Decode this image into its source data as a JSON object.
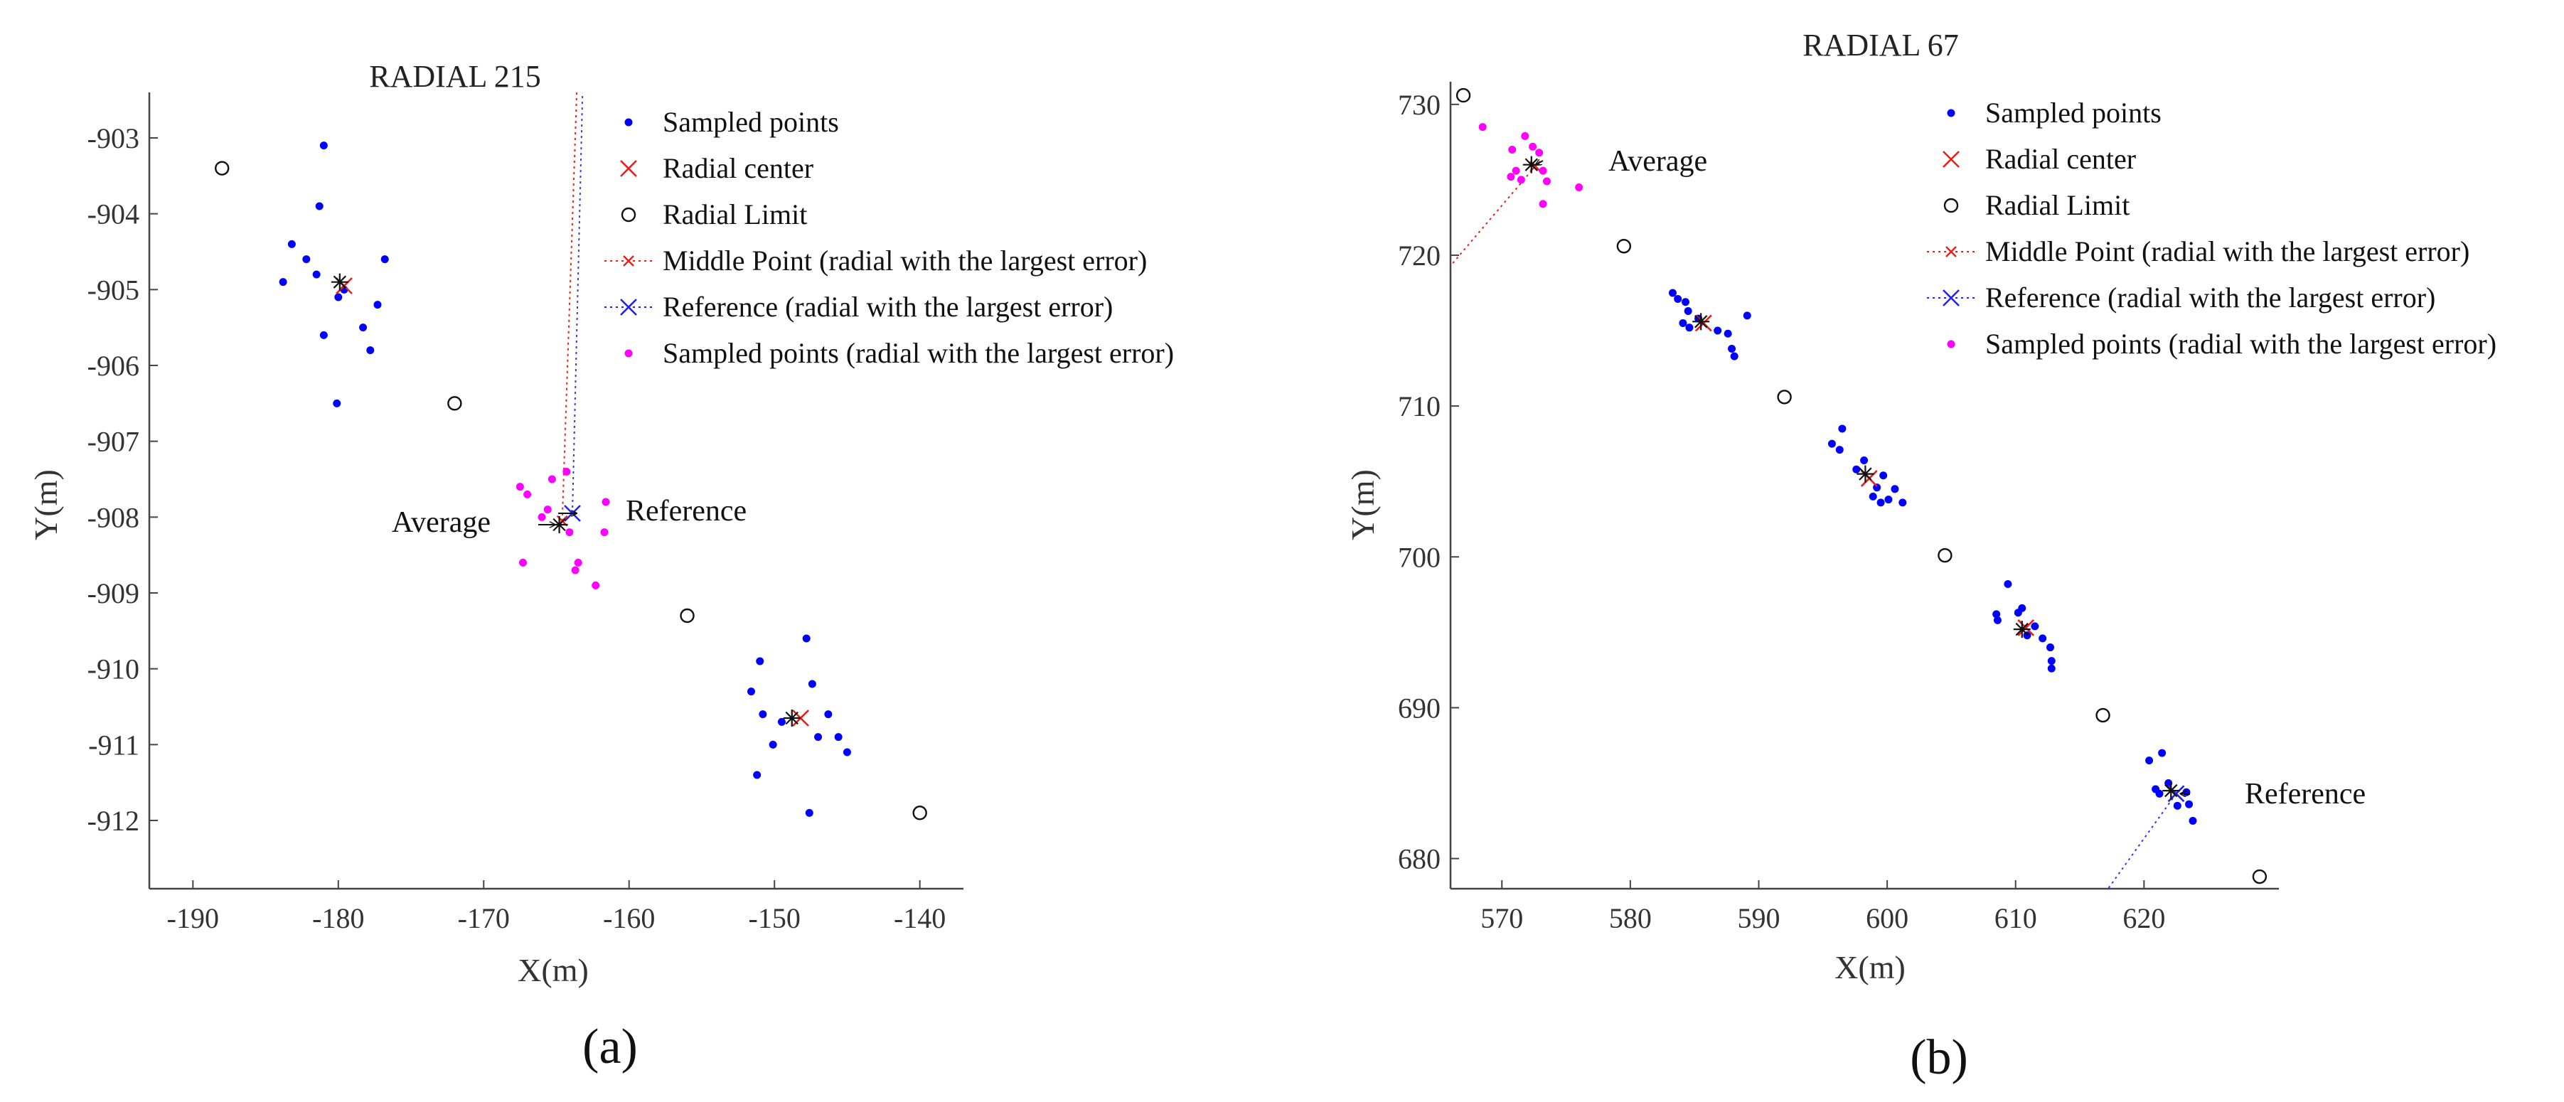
{
  "chart_data": [
    {
      "type": "scatter",
      "panel_label": "(a)",
      "title": "RADIAL 215",
      "xlabel": "X(m)",
      "ylabel": "Y(m)",
      "xlim": [
        -193,
        -137
      ],
      "ylim": [
        -912.9,
        -902.4
      ],
      "xticks": [
        -190,
        -180,
        -170,
        -160,
        -150,
        -140
      ],
      "yticks": [
        -903,
        -904,
        -905,
        -906,
        -907,
        -908,
        -909,
        -910,
        -911,
        -912
      ],
      "xtick_labels": [
        "-190",
        "-180",
        "-170",
        "-160",
        "-150",
        "-140"
      ],
      "ytick_labels": [
        "-903",
        "-904",
        "-905",
        "-906",
        "-907",
        "-908",
        "-909",
        "-910",
        "-911",
        "-912"
      ],
      "legend": {
        "position": "top-right",
        "entries": [
          {
            "key": "sampled",
            "label": "Sampled points"
          },
          {
            "key": "center",
            "label": "Radial center"
          },
          {
            "key": "limit",
            "label": "Radial Limit"
          },
          {
            "key": "middle",
            "label": "Middle Point (radial with the largest error)"
          },
          {
            "key": "reference",
            "label": "Reference (radial with the largest error)"
          },
          {
            "key": "sampled_err",
            "label": "Sampled points (radial with the largest error)"
          }
        ]
      },
      "annotations": [
        {
          "label": "Average",
          "text": "Average",
          "point": [
            -164.8,
            -908.1
          ],
          "side": "left"
        },
        {
          "label": "Reference",
          "text": "Reference",
          "point": [
            -163.9,
            -907.95
          ],
          "side": "right"
        }
      ],
      "series": [
        {
          "key": "sampled",
          "name": "Sampled points",
          "color": "#0000ff",
          "points": [
            [
              -181.0,
              -903.1
            ],
            [
              -181.3,
              -903.9
            ],
            [
              -183.2,
              -904.4
            ],
            [
              -182.2,
              -904.6
            ],
            [
              -181.5,
              -904.8
            ],
            [
              -183.8,
              -904.9
            ],
            [
              -176.8,
              -904.6
            ],
            [
              -177.3,
              -905.2
            ],
            [
              -178.3,
              -905.5
            ],
            [
              -177.8,
              -905.8
            ],
            [
              -181.0,
              -905.6
            ],
            [
              -180.0,
              -905.1
            ],
            [
              -179.6,
              -905.0
            ],
            [
              -180.1,
              -906.5
            ],
            [
              -147.8,
              -909.6
            ],
            [
              -151.0,
              -909.9
            ],
            [
              -151.6,
              -910.3
            ],
            [
              -147.4,
              -910.2
            ],
            [
              -150.8,
              -910.6
            ],
            [
              -146.3,
              -910.6
            ],
            [
              -145.6,
              -910.9
            ],
            [
              -147.0,
              -910.9
            ],
            [
              -150.1,
              -911.0
            ],
            [
              -145.0,
              -911.1
            ],
            [
              -149.5,
              -910.7
            ],
            [
              -151.2,
              -911.4
            ],
            [
              -147.6,
              -911.9
            ]
          ]
        },
        {
          "key": "center",
          "name": "Radial center",
          "color": "#e8201a",
          "points": [
            [
              -179.6,
              -904.95
            ],
            [
              -148.2,
              -910.65
            ]
          ]
        },
        {
          "key": "limit",
          "name": "Radial Limit",
          "color": "#111111",
          "points": [
            [
              -188.0,
              -903.4
            ],
            [
              -172.0,
              -906.5
            ],
            [
              -156.0,
              -909.3
            ],
            [
              -140.0,
              -911.9
            ]
          ]
        },
        {
          "key": "middle",
          "name": "Middle Point (radial with the largest error)",
          "color": "#e8201a",
          "points": [
            [
              -164.6,
              -908.05
            ]
          ]
        },
        {
          "key": "reference",
          "name": "Reference (radial with the largest error)",
          "color": "#2222ee",
          "points": [
            [
              -163.9,
              -907.95
            ]
          ]
        },
        {
          "key": "average",
          "name": "Average",
          "color": "#111111",
          "points": [
            [
              -179.9,
              -904.9
            ],
            [
              -148.8,
              -910.65
            ],
            [
              -164.8,
              -908.1
            ]
          ]
        },
        {
          "key": "sampled_err",
          "name": "Sampled points (radial with the largest error)",
          "color": "#ff00ff",
          "points": [
            [
              -167.5,
              -907.6
            ],
            [
              -167.0,
              -907.7
            ],
            [
              -165.3,
              -907.5
            ],
            [
              -164.3,
              -907.4
            ],
            [
              -161.6,
              -907.8
            ],
            [
              -165.6,
              -907.9
            ],
            [
              -166.0,
              -908.0
            ],
            [
              -164.1,
              -908.2
            ],
            [
              -161.7,
              -908.2
            ],
            [
              -167.3,
              -908.6
            ],
            [
              -163.5,
              -908.6
            ],
            [
              -163.7,
              -908.7
            ],
            [
              -162.3,
              -908.9
            ]
          ]
        }
      ],
      "guide_lines": [
        {
          "key": "middle_line",
          "color": "#e8201a",
          "from": [
            -164.6,
            -908.05
          ],
          "to": [
            -163.6,
            -902.4
          ]
        },
        {
          "key": "reference_line",
          "color": "#3333ee",
          "from": [
            -163.9,
            -907.95
          ],
          "to": [
            -163.2,
            -902.4
          ]
        }
      ]
    },
    {
      "type": "scatter",
      "panel_label": "(b)",
      "title": "RADIAL 67",
      "xlabel": "X(m)",
      "ylabel": "Y(m)",
      "xlim": [
        566,
        630.5
      ],
      "ylim": [
        678,
        731.5
      ],
      "xticks": [
        570,
        580,
        590,
        600,
        610,
        620
      ],
      "yticks": [
        730,
        720,
        710,
        700,
        690,
        680
      ],
      "xtick_labels": [
        "570",
        "580",
        "590",
        "600",
        "610",
        "620"
      ],
      "ytick_labels": [
        "730",
        "720",
        "710",
        "700",
        "690",
        "680"
      ],
      "legend": {
        "position": "top-right",
        "entries": [
          {
            "key": "sampled",
            "label": "Sampled points"
          },
          {
            "key": "center",
            "label": "Radial center"
          },
          {
            "key": "limit",
            "label": "Radial Limit"
          },
          {
            "key": "middle",
            "label": "Middle Point (radial with the largest error)"
          },
          {
            "key": "reference",
            "label": "Reference (radial with the largest error)"
          },
          {
            "key": "sampled_err",
            "label": "Sampled points (radial with the largest error)"
          }
        ]
      },
      "annotations": [
        {
          "label": "Average",
          "text": "Average",
          "point": [
            572.3,
            726.0
          ],
          "side": "right"
        },
        {
          "label": "Reference",
          "text": "Reference",
          "point": [
            622.5,
            684.3
          ],
          "side": "right"
        }
      ],
      "series": [
        {
          "key": "sampled",
          "name": "Sampled points",
          "color": "#0000ff",
          "points": [
            [
              583.3,
              717.5
            ],
            [
              583.7,
              717.1
            ],
            [
              584.3,
              716.9
            ],
            [
              584.5,
              716.3
            ],
            [
              585.3,
              715.8
            ],
            [
              584.1,
              715.5
            ],
            [
              586.8,
              715.0
            ],
            [
              587.6,
              714.8
            ],
            [
              589.1,
              716.0
            ],
            [
              587.9,
              713.8
            ],
            [
              588.1,
              713.3
            ],
            [
              584.6,
              715.2
            ],
            [
              596.5,
              708.5
            ],
            [
              595.7,
              707.5
            ],
            [
              596.3,
              707.1
            ],
            [
              598.2,
              706.4
            ],
            [
              597.6,
              705.8
            ],
            [
              599.7,
              705.4
            ],
            [
              599.2,
              704.6
            ],
            [
              600.6,
              704.5
            ],
            [
              600.1,
              703.8
            ],
            [
              601.2,
              703.6
            ],
            [
              599.5,
              703.6
            ],
            [
              598.9,
              704.0
            ],
            [
              609.4,
              698.2
            ],
            [
              608.5,
              696.2
            ],
            [
              608.6,
              695.8
            ],
            [
              610.2,
              696.3
            ],
            [
              610.5,
              696.6
            ],
            [
              611.5,
              695.4
            ],
            [
              612.1,
              694.6
            ],
            [
              612.7,
              694.0
            ],
            [
              612.8,
              693.1
            ],
            [
              612.8,
              692.6
            ],
            [
              610.9,
              694.8
            ],
            [
              621.4,
              687.0
            ],
            [
              620.4,
              686.5
            ],
            [
              620.9,
              684.6
            ],
            [
              621.9,
              685.0
            ],
            [
              622.6,
              683.5
            ],
            [
              623.3,
              684.4
            ],
            [
              623.5,
              683.6
            ],
            [
              623.8,
              682.5
            ],
            [
              621.2,
              684.3
            ]
          ]
        },
        {
          "key": "center",
          "name": "Radial center",
          "color": "#e8201a",
          "points": [
            [
              585.7,
              715.5
            ],
            [
              598.6,
              705.2
            ],
            [
              610.8,
              695.3
            ]
          ]
        },
        {
          "key": "limit",
          "name": "Radial Limit",
          "color": "#111111",
          "points": [
            [
              567.0,
              730.6
            ],
            [
              579.5,
              720.6
            ],
            [
              592.0,
              710.6
            ],
            [
              604.5,
              700.1
            ],
            [
              616.8,
              689.5
            ],
            [
              629.0,
              678.8
            ]
          ]
        },
        {
          "key": "middle",
          "name": "Middle Point (radial with the largest error)",
          "color": "#e8201a",
          "points": [
            [
              572.6,
              725.9
            ]
          ]
        },
        {
          "key": "reference",
          "name": "Reference (radial with the largest error)",
          "color": "#2222ee",
          "points": [
            [
              622.5,
              684.3
            ]
          ]
        },
        {
          "key": "average",
          "name": "Average",
          "color": "#111111",
          "points": [
            [
              585.5,
              715.6
            ],
            [
              598.3,
              705.5
            ],
            [
              610.5,
              695.2
            ],
            [
              622.1,
              684.5
            ],
            [
              572.3,
              726.0
            ]
          ]
        },
        {
          "key": "sampled_err",
          "name": "Sampled points (radial with the largest error)",
          "color": "#ff00ff",
          "points": [
            [
              568.5,
              728.5
            ],
            [
              570.8,
              727.0
            ],
            [
              571.8,
              727.9
            ],
            [
              572.4,
              727.2
            ],
            [
              572.9,
              726.8
            ],
            [
              571.1,
              725.6
            ],
            [
              570.7,
              725.2
            ],
            [
              571.5,
              725.0
            ],
            [
              573.2,
              725.6
            ],
            [
              573.5,
              724.9
            ],
            [
              576.0,
              724.5
            ],
            [
              573.2,
              723.4
            ]
          ]
        }
      ],
      "guide_lines": [
        {
          "key": "middle_line",
          "color": "#e8201a",
          "from": [
            572.6,
            725.9
          ],
          "to": [
            566.0,
            719.3
          ]
        },
        {
          "key": "reference_line",
          "color": "#3333ee",
          "from": [
            622.5,
            684.3
          ],
          "to": [
            617.2,
            678.0
          ]
        }
      ]
    }
  ]
}
